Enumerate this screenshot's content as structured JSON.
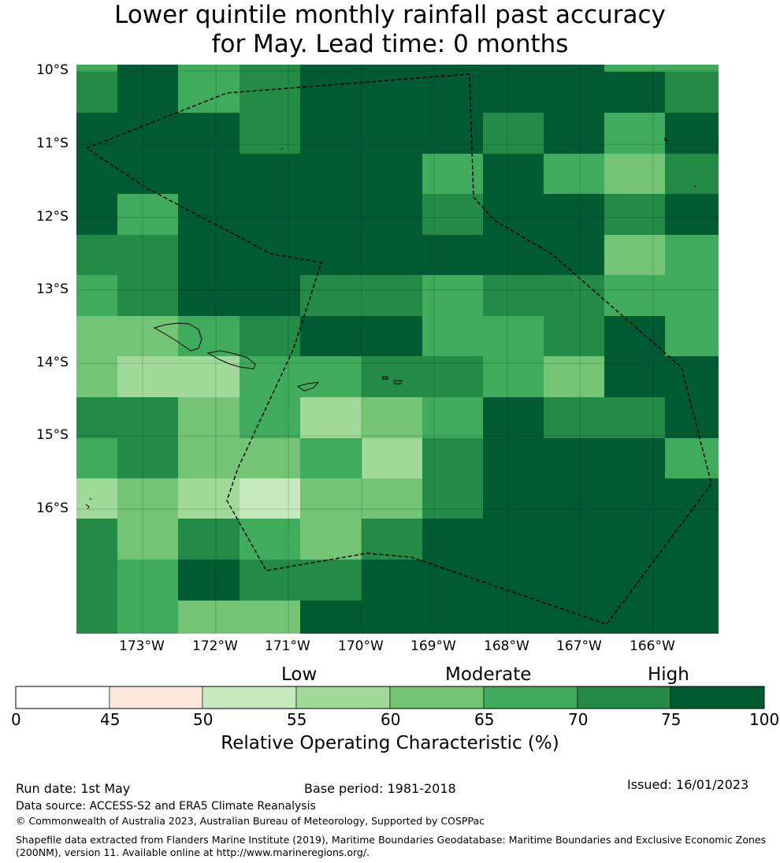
{
  "title_line1": "Lower quintile monthly rainfall past accuracy",
  "title_line2": "for May. Lead time: 0 months",
  "lat_labels": [
    "10°S",
    "11°S",
    "12°S",
    "13°S",
    "14°S",
    "15°S",
    "16°S"
  ],
  "lon_labels": [
    "173°W",
    "172°W",
    "171°W",
    "170°W",
    "169°W",
    "168°W",
    "167°W",
    "166°W"
  ],
  "legend": {
    "categories": [
      "Low",
      "Moderate",
      "High"
    ],
    "ticks": [
      "0",
      "45",
      "50",
      "55",
      "60",
      "65",
      "70",
      "75",
      "100"
    ],
    "colors": [
      "#ffffff",
      "#fee8de",
      "#c7e9c0",
      "#a1d99b",
      "#74c476",
      "#41ab5d",
      "#238b45",
      "#005a32"
    ],
    "title": "Relative Operating Characteristic (%)"
  },
  "chart_data": {
    "type": "heatmap",
    "value_scale": "class index 0-7 = bins 0-45, 45-50, 50-55, 55-60, 60-65, 65-70, 70-75, 75-100",
    "grid": [
      [
        6,
        7,
        5,
        6,
        7,
        7,
        7,
        7,
        7,
        7,
        6
      ],
      [
        7,
        7,
        7,
        6,
        7,
        7,
        7,
        6,
        7,
        5,
        7
      ],
      [
        7,
        7,
        7,
        7,
        7,
        7,
        5,
        7,
        5,
        4,
        6
      ],
      [
        7,
        5,
        7,
        7,
        7,
        7,
        6,
        7,
        7,
        6,
        7
      ],
      [
        6,
        6,
        7,
        7,
        7,
        7,
        7,
        7,
        7,
        4,
        5
      ],
      [
        5,
        6,
        7,
        7,
        6,
        6,
        5,
        6,
        6,
        5,
        5
      ],
      [
        4,
        4,
        5,
        6,
        7,
        7,
        5,
        5,
        6,
        7,
        5
      ],
      [
        4,
        3,
        3,
        5,
        5,
        6,
        6,
        5,
        4,
        7,
        7
      ],
      [
        6,
        6,
        4,
        5,
        3,
        4,
        5,
        7,
        6,
        6,
        7
      ],
      [
        5,
        6,
        4,
        4,
        5,
        3,
        6,
        7,
        7,
        7,
        5
      ],
      [
        3,
        4,
        3,
        2,
        4,
        4,
        6,
        7,
        7,
        7,
        7
      ],
      [
        6,
        4,
        6,
        5,
        4,
        6,
        7,
        7,
        7,
        7,
        7
      ],
      [
        6,
        5,
        7,
        6,
        6,
        7,
        7,
        7,
        7,
        7,
        7
      ],
      [
        6,
        5,
        4,
        4,
        7,
        7,
        7,
        7,
        7,
        7,
        7
      ]
    ]
  },
  "footer": {
    "run_date": "Run date: 1st May",
    "base_period": "Base period: 1981-2018",
    "issued": "Issued: 16/01/2023",
    "data_source": "Data source: ACCESS-S2 and ERA5 Climate Reanalysis",
    "copyright": "© Commonwealth of Australia 2023, Australian Bureau of Meteorology, Supported by COSPPac",
    "shapefile_line1": "Shapefile data extracted from Flanders Marine Institute (2019), Maritime Boundaries Geodatabase: Maritime Boundaries and Exclusive Economic Zones",
    "shapefile_line2": "(200NM), version 11. Available online at http://www.marineregions.org/."
  }
}
